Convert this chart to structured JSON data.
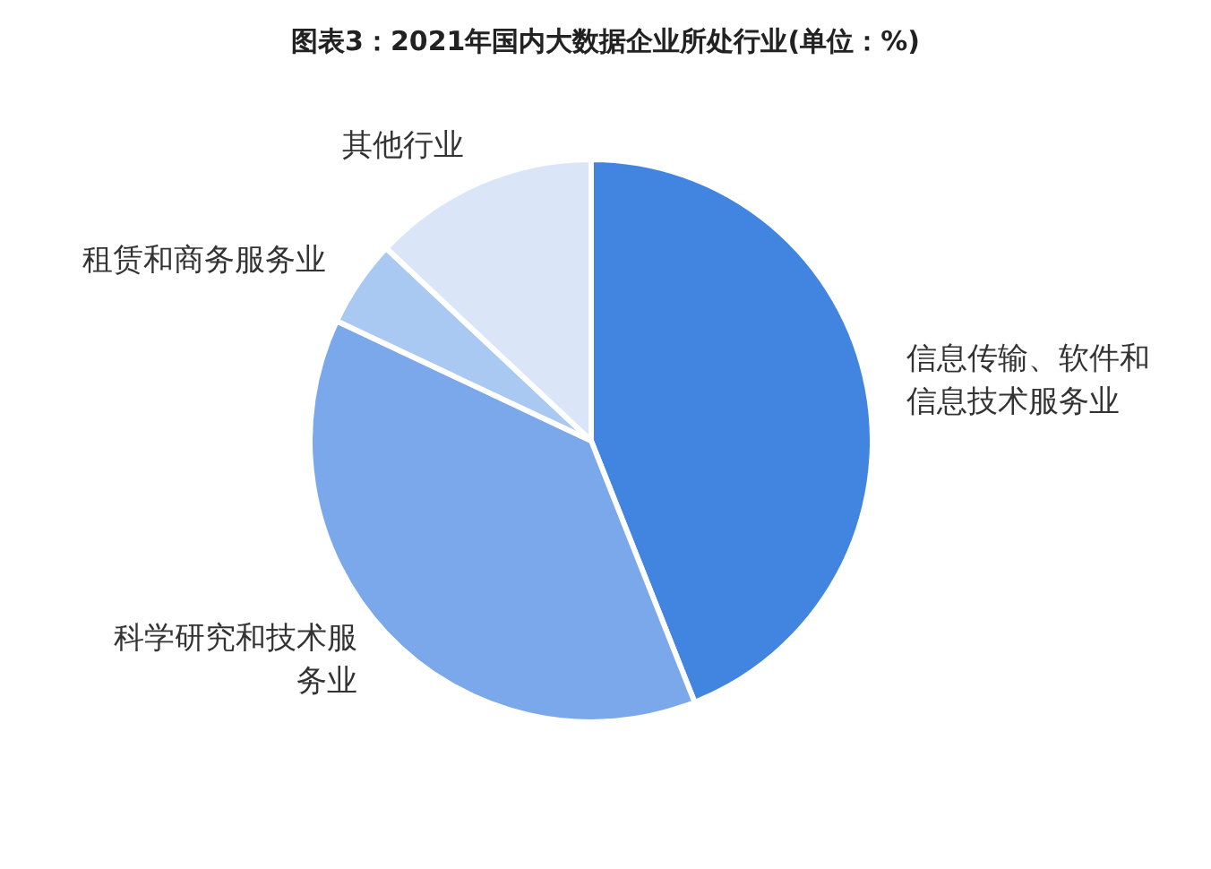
{
  "chart_data": {
    "type": "pie",
    "title": "图表3：2021年国内大数据企业所处行业(单位：%)",
    "categories": [
      "信息传输、软件和信息技术服务业",
      "科学研究和技术服务业",
      "租赁和商务服务业",
      "其他行业"
    ],
    "values": [
      44,
      38,
      5,
      13
    ],
    "colors": [
      "#4285e0",
      "#7aa8ea",
      "#a9c8f2",
      "#dae6f8"
    ]
  }
}
